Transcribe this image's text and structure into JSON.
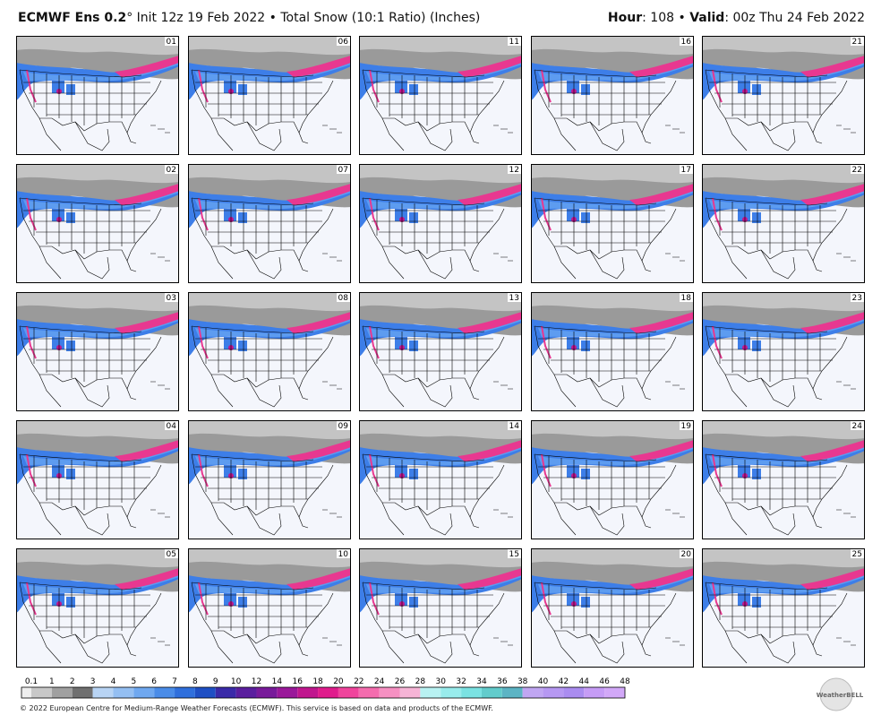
{
  "header": {
    "model": "ECMWF Ens 0.2",
    "description": "° Init 12z 19 Feb 2022 • Total Snow (10:1 Ratio) (Inches)",
    "hour_label": "Hour",
    "hour_value": ": 108 • ",
    "valid_label": "Valid",
    "valid_value": ": 00z Thu 24 Feb 2022"
  },
  "panels": [
    "01",
    "02",
    "03",
    "04",
    "05",
    "06",
    "07",
    "08",
    "09",
    "10",
    "11",
    "12",
    "13",
    "14",
    "15",
    "16",
    "17",
    "18",
    "19",
    "20",
    "21",
    "22",
    "23",
    "24",
    "25"
  ],
  "colorbar": {
    "labels": [
      0.1,
      1,
      2,
      3,
      4,
      5,
      6,
      7,
      8,
      9,
      10,
      12,
      14,
      16,
      18,
      20,
      22,
      24,
      26,
      28,
      30,
      32,
      34,
      36,
      38,
      40,
      42,
      44,
      46,
      48
    ],
    "colors": [
      "#eeeeee",
      "#c8c8c8",
      "#a0a0a0",
      "#707070",
      "#b8d4f4",
      "#94bff2",
      "#6fa8f0",
      "#4a8ce8",
      "#2f6fdc",
      "#1e4fc4",
      "#3a2aa8",
      "#5a1e9e",
      "#781a9a",
      "#9a189a",
      "#c0168e",
      "#e01c8c",
      "#f0449c",
      "#f46cae",
      "#f690c2",
      "#f6b4d6",
      "#b8f2f2",
      "#98ecec",
      "#7ae2e2",
      "#62cccc",
      "#5cb4c4",
      "#c0a6f2",
      "#b698f2",
      "#aa8cf0",
      "#c69cf6",
      "#d2a8f8"
    ]
  },
  "footer": "© 2022 European Centre for Medium-Range Weather Forecasts (ECMWF). This service is based on data and products of the ECMWF.",
  "logo": "WeatherBELL"
}
